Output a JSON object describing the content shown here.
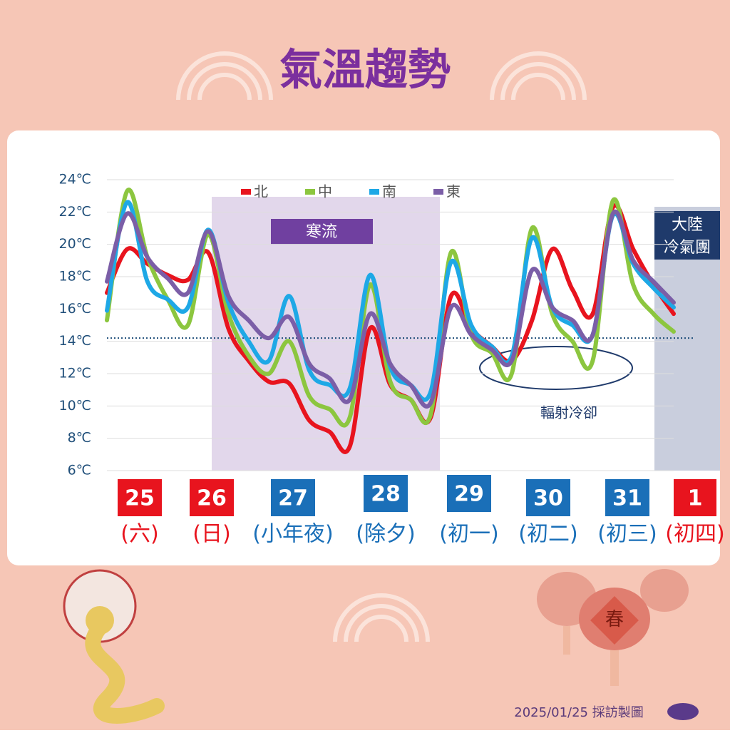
{
  "chart_data": {
    "type": "line",
    "title": "氣溫趨勢",
    "categories": [
      null,
      null,
      null,
      null,
      null,
      null,
      null,
      null,
      null,
      null,
      null,
      null,
      null,
      null,
      null,
      null,
      null,
      null,
      null,
      null,
      null,
      null,
      null,
      null,
      null,
      null,
      null,
      null,
      null
    ],
    "series": [
      {
        "name": "北",
        "color": "#e8141e",
        "values": [
          17,
          19.7,
          18.8,
          18.1,
          17.8,
          19.5,
          14.8,
          12.8,
          11.5,
          11.4,
          9.1,
          8.4,
          7.5,
          14.8,
          11.3,
          10.4,
          9.3,
          16.8,
          14.8,
          13.7,
          12.8,
          15.3,
          19.7,
          17.2,
          15.7,
          22.3,
          19.7,
          17.5,
          15.7
        ]
      },
      {
        "name": "中",
        "color": "#8cc63f",
        "values": [
          15.3,
          23.3,
          19.2,
          16.6,
          15,
          20.6,
          15.7,
          13.1,
          12,
          14,
          10.6,
          9.8,
          9.3,
          17.5,
          11.5,
          10.4,
          9.5,
          19.5,
          14.4,
          13.3,
          12,
          21,
          15.7,
          14,
          12.8,
          22.7,
          17.5,
          15.7,
          14.6
        ]
      },
      {
        "name": "南",
        "color": "#1ea8e6",
        "values": [
          15.9,
          22.6,
          17.7,
          16.6,
          16.1,
          20.9,
          16.4,
          14,
          12.8,
          16.8,
          12.2,
          11.3,
          11.1,
          18.1,
          12.4,
          11.3,
          10.9,
          18.9,
          15,
          13.7,
          13.1,
          20.4,
          16.1,
          15,
          14.4,
          21.8,
          18.8,
          17.3,
          16.1
        ]
      },
      {
        "name": "東",
        "color": "#7b5ea7",
        "values": [
          17.7,
          21.9,
          19.2,
          17.9,
          17,
          20.8,
          16.8,
          15.3,
          14.2,
          15.5,
          12.6,
          11.7,
          10.4,
          15.7,
          12.6,
          11.3,
          10.2,
          16.1,
          14.4,
          13.5,
          12.8,
          18.4,
          16.1,
          15.3,
          14.4,
          21.9,
          19,
          17.7,
          16.4
        ]
      }
    ],
    "ylim": [
      6,
      24
    ],
    "yticks": [
      {
        "value": 6,
        "label": "6℃"
      },
      {
        "value": 8,
        "label": "8℃"
      },
      {
        "value": 10,
        "label": "10℃"
      },
      {
        "value": 12,
        "label": "12℃"
      },
      {
        "value": 14,
        "label": "14℃"
      },
      {
        "value": 16,
        "label": "16℃"
      },
      {
        "value": 18,
        "label": "18℃"
      },
      {
        "value": 20,
        "label": "20℃"
      },
      {
        "value": 22,
        "label": "22℃"
      },
      {
        "value": 24,
        "label": "24℃"
      }
    ],
    "grid": true,
    "reference_line": 14.2,
    "days": [
      {
        "date": "25",
        "weekday": "(六)",
        "color": "#e8141e"
      },
      {
        "date": "26",
        "weekday": "(日)",
        "color": "#e8141e"
      },
      {
        "date": "27",
        "weekday": "(小年夜)",
        "color": "#1a6fb8"
      },
      {
        "date": "28",
        "weekday": "(除夕)",
        "color": "#1a6fb8"
      },
      {
        "date": "29",
        "weekday": "(初一)",
        "color": "#1a6fb8"
      },
      {
        "date": "30",
        "weekday": "(初二)",
        "color": "#1a6fb8"
      },
      {
        "date": "31",
        "weekday": "(初三)",
        "color": "#1a6fb8"
      },
      {
        "date": "1",
        "weekday": "(初四)",
        "color": "#e8141e"
      }
    ],
    "annotations": {
      "cold_wave": "寒流",
      "cold_air_line1": "大陸",
      "cold_air_line2": "冷氣團",
      "radiative": "輻射冷卻"
    },
    "footer": "2025/01/25 採訪製圖"
  }
}
